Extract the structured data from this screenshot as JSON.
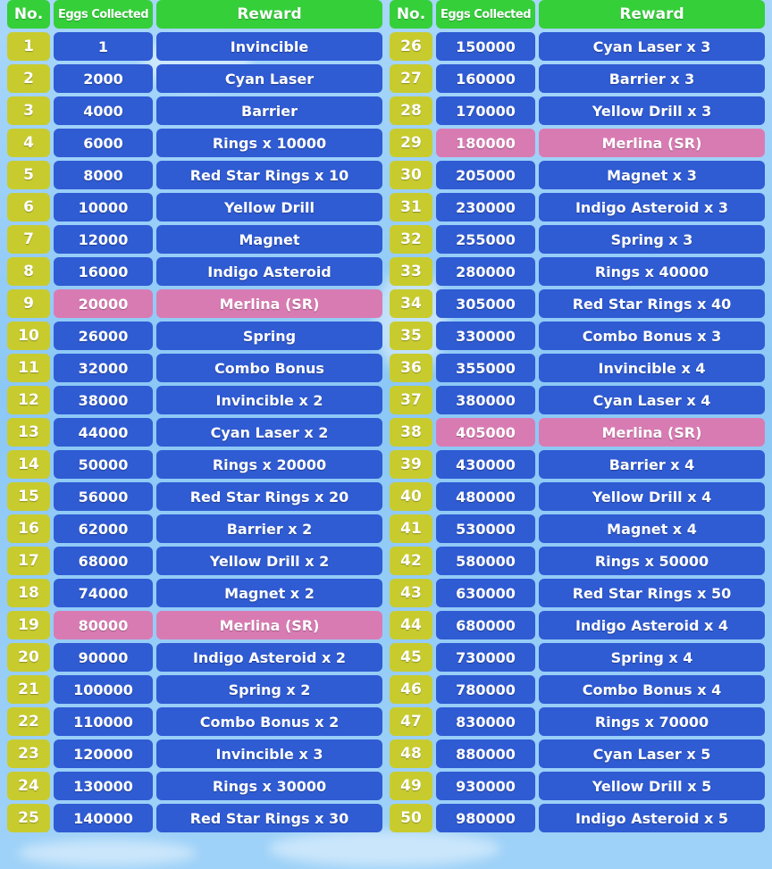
{
  "header": {
    "no": "No.",
    "eggs": "Eggs Collected",
    "reward": "Reward"
  },
  "colors": {
    "header_green": "#35cf3a",
    "number_yellow": "#c8cb2e",
    "cell_blue": "#2f5bd3",
    "highlight_pink": "#d97bb3"
  },
  "rows": [
    {
      "no": "1",
      "eggs": "1",
      "reward": "Invincible",
      "highlight": false
    },
    {
      "no": "2",
      "eggs": "2000",
      "reward": "Cyan Laser",
      "highlight": false
    },
    {
      "no": "3",
      "eggs": "4000",
      "reward": "Barrier",
      "highlight": false
    },
    {
      "no": "4",
      "eggs": "6000",
      "reward": "Rings x 10000",
      "highlight": false
    },
    {
      "no": "5",
      "eggs": "8000",
      "reward": "Red Star Rings x 10",
      "highlight": false
    },
    {
      "no": "6",
      "eggs": "10000",
      "reward": "Yellow Drill",
      "highlight": false
    },
    {
      "no": "7",
      "eggs": "12000",
      "reward": "Magnet",
      "highlight": false
    },
    {
      "no": "8",
      "eggs": "16000",
      "reward": "Indigo Asteroid",
      "highlight": false
    },
    {
      "no": "9",
      "eggs": "20000",
      "reward": "Merlina (SR)",
      "highlight": true
    },
    {
      "no": "10",
      "eggs": "26000",
      "reward": "Spring",
      "highlight": false
    },
    {
      "no": "11",
      "eggs": "32000",
      "reward": "Combo Bonus",
      "highlight": false
    },
    {
      "no": "12",
      "eggs": "38000",
      "reward": "Invincible x 2",
      "highlight": false
    },
    {
      "no": "13",
      "eggs": "44000",
      "reward": "Cyan Laser x 2",
      "highlight": false
    },
    {
      "no": "14",
      "eggs": "50000",
      "reward": "Rings x 20000",
      "highlight": false
    },
    {
      "no": "15",
      "eggs": "56000",
      "reward": "Red Star Rings x 20",
      "highlight": false
    },
    {
      "no": "16",
      "eggs": "62000",
      "reward": "Barrier x 2",
      "highlight": false
    },
    {
      "no": "17",
      "eggs": "68000",
      "reward": "Yellow Drill x 2",
      "highlight": false
    },
    {
      "no": "18",
      "eggs": "74000",
      "reward": "Magnet x 2",
      "highlight": false
    },
    {
      "no": "19",
      "eggs": "80000",
      "reward": "Merlina (SR)",
      "highlight": true
    },
    {
      "no": "20",
      "eggs": "90000",
      "reward": "Indigo Asteroid x 2",
      "highlight": false
    },
    {
      "no": "21",
      "eggs": "100000",
      "reward": "Spring x 2",
      "highlight": false
    },
    {
      "no": "22",
      "eggs": "110000",
      "reward": "Combo Bonus x 2",
      "highlight": false
    },
    {
      "no": "23",
      "eggs": "120000",
      "reward": "Invincible x 3",
      "highlight": false
    },
    {
      "no": "24",
      "eggs": "130000",
      "reward": "Rings x 30000",
      "highlight": false
    },
    {
      "no": "25",
      "eggs": "140000",
      "reward": "Red Star Rings x 30",
      "highlight": false
    },
    {
      "no": "26",
      "eggs": "150000",
      "reward": "Cyan Laser x 3",
      "highlight": false
    },
    {
      "no": "27",
      "eggs": "160000",
      "reward": "Barrier x 3",
      "highlight": false
    },
    {
      "no": "28",
      "eggs": "170000",
      "reward": "Yellow Drill x 3",
      "highlight": false
    },
    {
      "no": "29",
      "eggs": "180000",
      "reward": "Merlina (SR)",
      "highlight": true
    },
    {
      "no": "30",
      "eggs": "205000",
      "reward": "Magnet x 3",
      "highlight": false
    },
    {
      "no": "31",
      "eggs": "230000",
      "reward": "Indigo Asteroid x 3",
      "highlight": false
    },
    {
      "no": "32",
      "eggs": "255000",
      "reward": "Spring x 3",
      "highlight": false
    },
    {
      "no": "33",
      "eggs": "280000",
      "reward": "Rings x 40000",
      "highlight": false
    },
    {
      "no": "34",
      "eggs": "305000",
      "reward": "Red Star Rings x 40",
      "highlight": false
    },
    {
      "no": "35",
      "eggs": "330000",
      "reward": "Combo Bonus x 3",
      "highlight": false
    },
    {
      "no": "36",
      "eggs": "355000",
      "reward": "Invincible x 4",
      "highlight": false
    },
    {
      "no": "37",
      "eggs": "380000",
      "reward": "Cyan Laser x 4",
      "highlight": false
    },
    {
      "no": "38",
      "eggs": "405000",
      "reward": "Merlina (SR)",
      "highlight": true
    },
    {
      "no": "39",
      "eggs": "430000",
      "reward": "Barrier x 4",
      "highlight": false
    },
    {
      "no": "40",
      "eggs": "480000",
      "reward": "Yellow Drill x 4",
      "highlight": false
    },
    {
      "no": "41",
      "eggs": "530000",
      "reward": "Magnet x 4",
      "highlight": false
    },
    {
      "no": "42",
      "eggs": "580000",
      "reward": "Rings x 50000",
      "highlight": false
    },
    {
      "no": "43",
      "eggs": "630000",
      "reward": "Red Star Rings x 50",
      "highlight": false
    },
    {
      "no": "44",
      "eggs": "680000",
      "reward": "Indigo Asteroid x 4",
      "highlight": false
    },
    {
      "no": "45",
      "eggs": "730000",
      "reward": "Spring x 4",
      "highlight": false
    },
    {
      "no": "46",
      "eggs": "780000",
      "reward": "Combo Bonus x 4",
      "highlight": false
    },
    {
      "no": "47",
      "eggs": "830000",
      "reward": "Rings x 70000",
      "highlight": false
    },
    {
      "no": "48",
      "eggs": "880000",
      "reward": "Cyan Laser x 5",
      "highlight": false
    },
    {
      "no": "49",
      "eggs": "930000",
      "reward": "Yellow Drill x 5",
      "highlight": false
    },
    {
      "no": "50",
      "eggs": "980000",
      "reward": "Indigo Asteroid x 5",
      "highlight": false
    }
  ]
}
